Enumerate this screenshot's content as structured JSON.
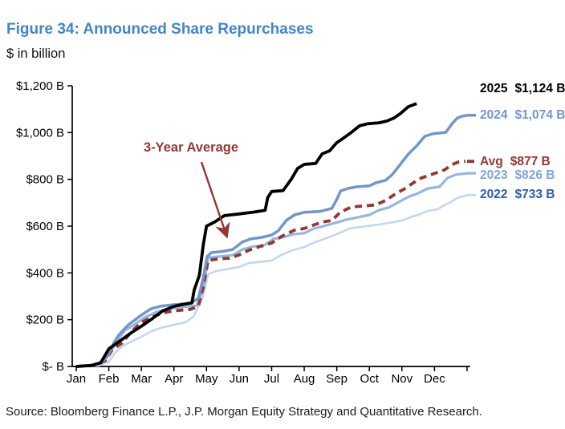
{
  "figure": {
    "title": "Figure 34: Announced Share Repurchases",
    "title_color": "#4285C6",
    "subtitle": "$ in billion",
    "source": "Source: Bloomberg Finance L.P., J.P. Morgan Equity Strategy and Quantitative Research."
  },
  "chart_data": {
    "type": "line",
    "title": "Figure 34: Announced Share Repurchases",
    "ylabel": "$ in billion",
    "x_unit": "months, Jan 1 = 0 through year-end = 12 (cumulative announced buybacks)",
    "xlim": [
      0,
      12
    ],
    "ylim": [
      0,
      1200
    ],
    "grid": false,
    "legend_position": "right-end-labels",
    "x_ticks": [
      "Jan",
      "Feb",
      "Mar",
      "Apr",
      "May",
      "Jun",
      "Jul",
      "Aug",
      "Sep",
      "Oct",
      "Nov",
      "Dec"
    ],
    "y_tick_values": [
      0,
      200,
      400,
      600,
      800,
      1000,
      1200
    ],
    "y_tick_labels": [
      "$- B",
      "$200 B",
      "$400 B",
      "$600 B",
      "$800 B",
      "$1,000 B",
      "$1,200 B"
    ],
    "axis_color": "#000000",
    "annotation": {
      "text": "3-Year Average",
      "color": "#943634",
      "text_x": 238,
      "text_y": 189,
      "arrow_from": [
        251,
        202
      ],
      "arrow_to": [
        282,
        293
      ]
    },
    "series": [
      {
        "name": "2025",
        "end_label": {
          "name": "2025",
          "value": "$1,124 B"
        },
        "final_value_billion": 1124,
        "color": "#000000",
        "label_color": "#000000",
        "dash": false,
        "width": 3.8,
        "stub": false,
        "end_label_dy": -19,
        "points": [
          [
            0,
            0
          ],
          [
            0.45,
            4
          ],
          [
            0.75,
            15
          ],
          [
            1.0,
            75
          ],
          [
            1.35,
            110
          ],
          [
            1.7,
            145
          ],
          [
            2.0,
            172
          ],
          [
            2.35,
            206
          ],
          [
            2.65,
            237
          ],
          [
            3.0,
            257
          ],
          [
            3.3,
            266
          ],
          [
            3.55,
            272
          ],
          [
            3.62,
            326
          ],
          [
            3.78,
            390
          ],
          [
            3.9,
            520
          ],
          [
            4.0,
            600
          ],
          [
            4.25,
            618
          ],
          [
            4.55,
            645
          ],
          [
            5.0,
            652
          ],
          [
            5.45,
            660
          ],
          [
            5.8,
            668
          ],
          [
            5.88,
            722
          ],
          [
            6.0,
            748
          ],
          [
            6.35,
            752
          ],
          [
            6.6,
            800
          ],
          [
            6.8,
            847
          ],
          [
            7.0,
            864
          ],
          [
            7.35,
            868
          ],
          [
            7.55,
            909
          ],
          [
            7.78,
            922
          ],
          [
            8.0,
            957
          ],
          [
            8.22,
            978
          ],
          [
            8.45,
            1001
          ],
          [
            8.7,
            1029
          ],
          [
            8.95,
            1038
          ],
          [
            9.3,
            1042
          ],
          [
            9.55,
            1050
          ],
          [
            9.75,
            1062
          ],
          [
            9.95,
            1081
          ],
          [
            10.2,
            1111
          ],
          [
            10.45,
            1124
          ]
        ]
      },
      {
        "name": "2024",
        "end_label": {
          "name": "2024",
          "value": "$1,074 B"
        },
        "final_value_billion": 1074,
        "color": "#7596C9",
        "label_color": "#6D98CF",
        "dash": false,
        "width": 3.5,
        "stub": true,
        "end_label_dy": -1,
        "points": [
          [
            0,
            0
          ],
          [
            0.5,
            5
          ],
          [
            0.8,
            20
          ],
          [
            1.0,
            52
          ],
          [
            1.15,
            100
          ],
          [
            1.3,
            134
          ],
          [
            1.6,
            178
          ],
          [
            2.0,
            220
          ],
          [
            2.3,
            247
          ],
          [
            2.6,
            258
          ],
          [
            3.0,
            264
          ],
          [
            3.5,
            270
          ],
          [
            3.75,
            291
          ],
          [
            3.9,
            380
          ],
          [
            4.02,
            470
          ],
          [
            4.15,
            487
          ],
          [
            4.5,
            492
          ],
          [
            4.8,
            500
          ],
          [
            5.1,
            532
          ],
          [
            5.35,
            545
          ],
          [
            5.7,
            552
          ],
          [
            6.0,
            562
          ],
          [
            6.2,
            580
          ],
          [
            6.45,
            624
          ],
          [
            6.7,
            648
          ],
          [
            7.0,
            659
          ],
          [
            7.5,
            663
          ],
          [
            7.85,
            676
          ],
          [
            8.02,
            720
          ],
          [
            8.12,
            751
          ],
          [
            8.35,
            761
          ],
          [
            8.6,
            768
          ],
          [
            9.0,
            772
          ],
          [
            9.2,
            785
          ],
          [
            9.5,
            796
          ],
          [
            9.7,
            820
          ],
          [
            9.95,
            864
          ],
          [
            10.2,
            909
          ],
          [
            10.45,
            943
          ],
          [
            10.7,
            984
          ],
          [
            10.95,
            995
          ],
          [
            11.35,
            1001
          ],
          [
            11.55,
            1040
          ],
          [
            11.7,
            1062
          ],
          [
            11.85,
            1070
          ],
          [
            12.0,
            1074
          ]
        ]
      },
      {
        "name": "Avg",
        "end_label": {
          "name": "Avg",
          "value": "$877 B"
        },
        "final_value_billion": 877,
        "color": "#943634",
        "label_color": "#943634",
        "dash": true,
        "width": 3.8,
        "stub": true,
        "end_label_dy": 0,
        "points": [
          [
            0,
            0
          ],
          [
            0.6,
            5
          ],
          [
            0.9,
            25
          ],
          [
            1.1,
            70
          ],
          [
            1.4,
            99
          ],
          [
            1.7,
            150
          ],
          [
            2.0,
            189
          ],
          [
            2.35,
            213
          ],
          [
            2.7,
            230
          ],
          [
            3.0,
            238
          ],
          [
            3.5,
            244
          ],
          [
            3.75,
            257
          ],
          [
            3.9,
            340
          ],
          [
            4.05,
            453
          ],
          [
            4.35,
            460
          ],
          [
            4.7,
            463
          ],
          [
            5.0,
            477
          ],
          [
            5.3,
            497
          ],
          [
            5.6,
            511
          ],
          [
            6.0,
            528
          ],
          [
            6.3,
            556
          ],
          [
            6.7,
            583
          ],
          [
            7.0,
            590
          ],
          [
            7.3,
            605
          ],
          [
            7.55,
            618
          ],
          [
            7.85,
            624
          ],
          [
            8.1,
            659
          ],
          [
            8.45,
            682
          ],
          [
            8.8,
            686
          ],
          [
            9.2,
            691
          ],
          [
            9.5,
            710
          ],
          [
            9.8,
            738
          ],
          [
            10.1,
            761
          ],
          [
            10.35,
            785
          ],
          [
            10.6,
            806
          ],
          [
            10.95,
            823
          ],
          [
            11.3,
            840
          ],
          [
            11.55,
            864
          ],
          [
            11.75,
            875
          ],
          [
            11.95,
            877
          ]
        ]
      },
      {
        "name": "2023",
        "end_label": {
          "name": "2023",
          "value": "$826 B"
        },
        "final_value_billion": 826,
        "color": "#95B7E0",
        "label_color": "#7FA7D9",
        "dash": false,
        "width": 3.2,
        "stub": true,
        "end_label_dy": 2,
        "points": [
          [
            0,
            0
          ],
          [
            0.55,
            5
          ],
          [
            0.85,
            25
          ],
          [
            1.05,
            60
          ],
          [
            1.25,
            110
          ],
          [
            1.5,
            155
          ],
          [
            1.8,
            180
          ],
          [
            2.1,
            210
          ],
          [
            2.5,
            235
          ],
          [
            2.9,
            248
          ],
          [
            3.3,
            255
          ],
          [
            3.7,
            260
          ],
          [
            3.9,
            330
          ],
          [
            4.05,
            465
          ],
          [
            4.4,
            470
          ],
          [
            4.8,
            476
          ],
          [
            5.1,
            500
          ],
          [
            5.4,
            512
          ],
          [
            5.8,
            520
          ],
          [
            6.05,
            545
          ],
          [
            6.35,
            552
          ],
          [
            6.65,
            565
          ],
          [
            7.0,
            570
          ],
          [
            7.3,
            590
          ],
          [
            7.6,
            600
          ],
          [
            7.9,
            612
          ],
          [
            8.05,
            618
          ],
          [
            8.3,
            628
          ],
          [
            8.55,
            635
          ],
          [
            9.0,
            648
          ],
          [
            9.3,
            669
          ],
          [
            9.6,
            680
          ],
          [
            9.9,
            703
          ],
          [
            10.2,
            725
          ],
          [
            10.45,
            738
          ],
          [
            10.8,
            761
          ],
          [
            11.15,
            768
          ],
          [
            11.4,
            806
          ],
          [
            11.65,
            820
          ],
          [
            12.0,
            826
          ]
        ]
      },
      {
        "name": "2022",
        "end_label": {
          "name": "2022",
          "value": "$733 B"
        },
        "final_value_billion": 733,
        "color": "#C3D6EE",
        "label_color": "#2F5EA8",
        "dash": false,
        "width": 2.6,
        "stub": true,
        "end_label_dy": -1,
        "points": [
          [
            0,
            0
          ],
          [
            0.7,
            4
          ],
          [
            1.0,
            20
          ],
          [
            1.2,
            60
          ],
          [
            1.45,
            90
          ],
          [
            1.75,
            110
          ],
          [
            2.0,
            127
          ],
          [
            2.3,
            150
          ],
          [
            2.6,
            165
          ],
          [
            3.0,
            178
          ],
          [
            3.35,
            189
          ],
          [
            3.6,
            213
          ],
          [
            3.9,
            300
          ],
          [
            4.05,
            395
          ],
          [
            4.3,
            408
          ],
          [
            4.7,
            418
          ],
          [
            5.0,
            425
          ],
          [
            5.3,
            442
          ],
          [
            5.7,
            448
          ],
          [
            6.0,
            453
          ],
          [
            6.3,
            477
          ],
          [
            6.6,
            495
          ],
          [
            7.0,
            511
          ],
          [
            7.35,
            532
          ],
          [
            7.7,
            550
          ],
          [
            8.0,
            566
          ],
          [
            8.4,
            590
          ],
          [
            8.9,
            600
          ],
          [
            9.3,
            607
          ],
          [
            9.7,
            616
          ],
          [
            10.0,
            624
          ],
          [
            10.3,
            640
          ],
          [
            10.5,
            648
          ],
          [
            10.8,
            665
          ],
          [
            11.1,
            672
          ],
          [
            11.3,
            690
          ],
          [
            11.5,
            703
          ],
          [
            11.7,
            720
          ],
          [
            12.0,
            733
          ]
        ]
      }
    ]
  }
}
